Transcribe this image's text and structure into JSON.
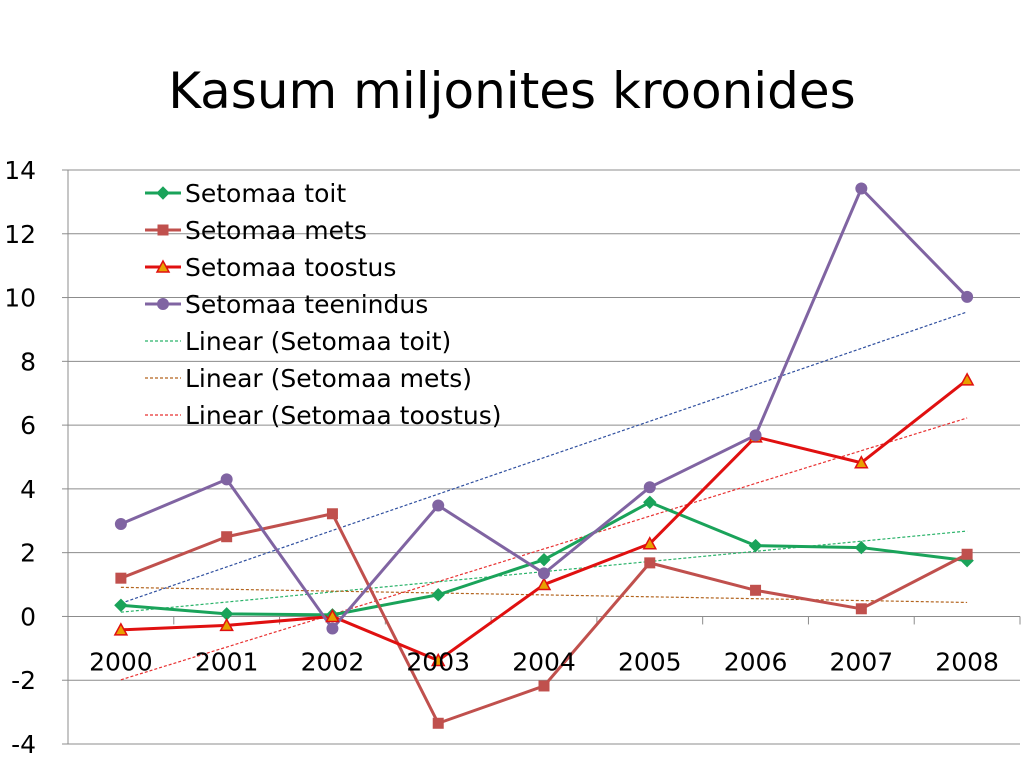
{
  "chart_data": {
    "type": "line",
    "title": "Kasum miljonites kroonides",
    "xlabel": "",
    "ylabel": "",
    "categories": [
      "2000",
      "2001",
      "2002",
      "2003",
      "2004",
      "2005",
      "2006",
      "2007",
      "2008"
    ],
    "ylim": [
      -4,
      14
    ],
    "yticks": [
      14,
      12,
      10,
      8,
      6,
      4,
      2,
      0,
      -2,
      -4
    ],
    "ytick_labels": [
      "14",
      "12",
      "10",
      "8",
      "6",
      "4",
      "2",
      "0",
      "-2",
      "-4"
    ],
    "grid": true,
    "legend_position": "top-left",
    "series": [
      {
        "name": "Setomaa toit",
        "color": "#1aa35a",
        "marker": "diamond",
        "values": [
          0.35,
          0.08,
          0.05,
          0.68,
          1.78,
          3.58,
          2.22,
          2.16,
          1.75
        ]
      },
      {
        "name": "Setomaa mets",
        "color": "#c0504d",
        "marker": "square",
        "values": [
          1.2,
          2.5,
          3.22,
          -3.35,
          -2.18,
          1.68,
          0.82,
          0.24,
          1.95
        ]
      },
      {
        "name": "Setomaa toostus",
        "color": "#e01010",
        "marker": "triangle",
        "values": [
          -0.42,
          -0.28,
          0.0,
          -1.38,
          1.0,
          2.28,
          5.63,
          4.82,
          7.42
        ]
      },
      {
        "name": "Setomaa teenindus",
        "color": "#8064a2",
        "marker": "circle",
        "values": [
          2.9,
          4.3,
          -0.38,
          3.48,
          1.35,
          4.05,
          5.68,
          13.42,
          10.02
        ]
      }
    ],
    "trendlines": [
      {
        "name": "Linear (Setomaa toit)",
        "color": "#2bb36a",
        "in_legend": true
      },
      {
        "name": "Linear (Setomaa mets)",
        "color": "#b3641e",
        "in_legend": true
      },
      {
        "name": "Linear (Setomaa toostus)",
        "color": "#e83030",
        "in_legend": true
      },
      {
        "name": "",
        "color": "#2f4f9f",
        "in_legend": false,
        "series_index": 3
      }
    ]
  }
}
